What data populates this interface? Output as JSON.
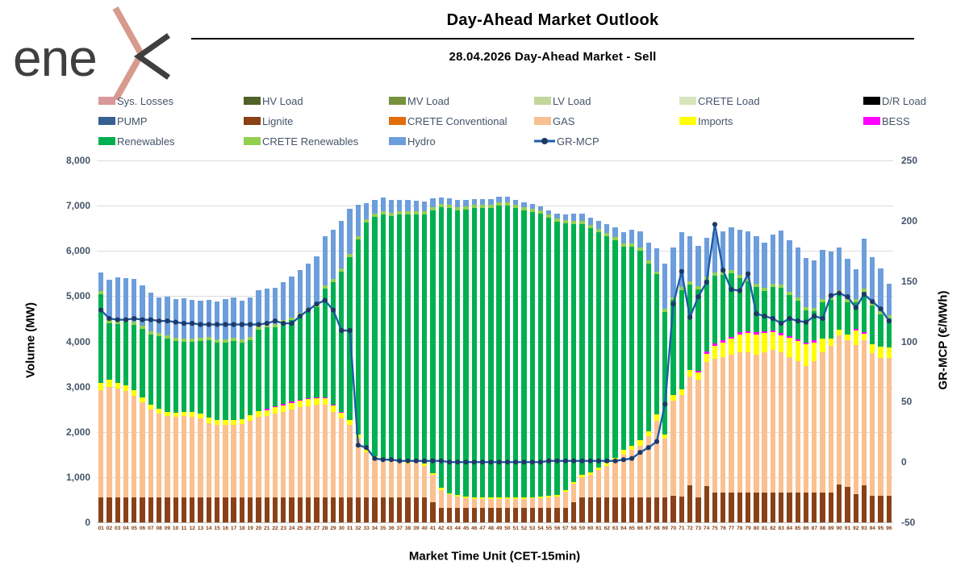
{
  "logo": {
    "text": "ene",
    "brand": "enex",
    "chevron_color": "#D69B8D",
    "text_color": "#3F3F3F"
  },
  "header": {
    "title": "Day-Ahead Market Outlook",
    "subtitle": "28.04.2026  Day-Ahead Market - Sell"
  },
  "axes": {
    "y_left": {
      "title": "Volume (MW)",
      "ticks_bottom_up": [
        "0",
        "1,000",
        "2,000",
        "3,000",
        "4,000",
        "5,000",
        "6,000",
        "7,000",
        "8,000"
      ],
      "min": 0,
      "max": 8000
    },
    "y_right": {
      "title": "GR-MCP (€/MWh)",
      "ticks_bottom_up": [
        "-50",
        "0",
        "50",
        "100",
        "150",
        "200",
        "250"
      ],
      "min": -50,
      "max": 250
    },
    "x": {
      "title": "Market Time Unit (CET-15min)",
      "labels": [
        "01",
        "02",
        "03",
        "04",
        "05",
        "06",
        "07",
        "08",
        "09",
        "10",
        "11",
        "12",
        "13",
        "14",
        "15",
        "16",
        "17",
        "18",
        "19",
        "20",
        "21",
        "22",
        "23",
        "24",
        "25",
        "26",
        "27",
        "28",
        "29",
        "30",
        "31",
        "32",
        "33",
        "34",
        "35",
        "36",
        "37",
        "38",
        "39",
        "40",
        "41",
        "42",
        "43",
        "44",
        "45",
        "46",
        "47",
        "48",
        "49",
        "50",
        "51",
        "52",
        "53",
        "54",
        "55",
        "56",
        "57",
        "58",
        "59",
        "60",
        "61",
        "62",
        "63",
        "64",
        "65",
        "66",
        "67",
        "68",
        "69",
        "70",
        "71",
        "72",
        "73",
        "74",
        "75",
        "76",
        "77",
        "78",
        "79",
        "80",
        "81",
        "82",
        "83",
        "84",
        "85",
        "86",
        "87",
        "88",
        "89",
        "90",
        "91",
        "92",
        "93",
        "94",
        "95",
        "96"
      ]
    }
  },
  "legend": {
    "items": [
      {
        "key": "sys_losses",
        "label": "Sys. Losses",
        "color": "#D9989B",
        "type": "swatch"
      },
      {
        "key": "hv_load",
        "label": "HV Load",
        "color": "#4F6228",
        "type": "swatch"
      },
      {
        "key": "mv_load",
        "label": "MV Load",
        "color": "#76923C",
        "type": "swatch"
      },
      {
        "key": "lv_load",
        "label": "LV Load",
        "color": "#C3D69B",
        "type": "swatch"
      },
      {
        "key": "crete_load",
        "label": "CRETE Load",
        "color": "#D7E4BC",
        "type": "swatch"
      },
      {
        "key": "dr_load",
        "label": "D/R Load",
        "color": "#000000",
        "type": "swatch"
      },
      {
        "key": "pump",
        "label": "PUMP",
        "color": "#376092",
        "type": "swatch"
      },
      {
        "key": "lignite",
        "label": "Lignite",
        "color": "#8A4117",
        "type": "swatch"
      },
      {
        "key": "crete_conventional",
        "label": "CRETE Conventional",
        "color": "#E36C0A",
        "type": "swatch"
      },
      {
        "key": "gas",
        "label": "GAS",
        "color": "#FAC090",
        "type": "swatch"
      },
      {
        "key": "imports",
        "label": "Imports",
        "color": "#FFFF00",
        "type": "swatch"
      },
      {
        "key": "bess",
        "label": "BESS",
        "color": "#FF00FF",
        "type": "swatch"
      },
      {
        "key": "renewables",
        "label": "Renewables",
        "color": "#00B050",
        "type": "swatch"
      },
      {
        "key": "crete_renewables",
        "label": "CRETE Renewables",
        "color": "#92D050",
        "type": "swatch"
      },
      {
        "key": "hydro",
        "label": "Hydro",
        "color": "#6D9EDC",
        "type": "swatch"
      },
      {
        "key": "gr_mcp",
        "label": "GR-MCP",
        "color": "#1E5CA8",
        "type": "line",
        "marker_color": "#1F3864"
      }
    ]
  },
  "chart_data": {
    "type": "stacked-bar+line",
    "description": "96 quarter-hour market time units; stacked sell volumes (MW, left axis) with GR-MCP price line (EUR/MWh, right axis)",
    "ylim_left": [
      0,
      8000
    ],
    "ylim_right": [
      -50,
      250
    ],
    "grid": "horizontal, every 1000 MW",
    "stack_order": [
      "lignite",
      "gas",
      "imports",
      "bess",
      "renewables",
      "crete_renewables",
      "hydro"
    ],
    "zero_series": [
      "sys_losses",
      "hv_load",
      "mv_load",
      "lv_load",
      "crete_load",
      "dr_load",
      "pump",
      "crete_conventional"
    ],
    "series": {
      "lignite": [
        550,
        550,
        550,
        550,
        550,
        550,
        550,
        550,
        550,
        550,
        550,
        550,
        550,
        550,
        550,
        550,
        550,
        550,
        550,
        550,
        550,
        550,
        550,
        550,
        550,
        550,
        550,
        550,
        550,
        550,
        550,
        550,
        550,
        550,
        550,
        550,
        550,
        550,
        550,
        550,
        450,
        320,
        320,
        320,
        320,
        320,
        320,
        320,
        320,
        320,
        320,
        320,
        320,
        320,
        320,
        320,
        320,
        450,
        550,
        550,
        550,
        550,
        550,
        550,
        550,
        550,
        550,
        550,
        550,
        590,
        570,
        820,
        550,
        800,
        660,
        660,
        660,
        660,
        660,
        660,
        660,
        660,
        660,
        660,
        660,
        660,
        660,
        660,
        660,
        835,
        780,
        620,
        820,
        590,
        590,
        590
      ],
      "gas": [
        2380,
        2450,
        2400,
        2350,
        2250,
        2100,
        1950,
        1850,
        1800,
        1780,
        1800,
        1780,
        1750,
        1650,
        1600,
        1600,
        1600,
        1620,
        1700,
        1780,
        1800,
        1850,
        1900,
        1950,
        2000,
        2020,
        2050,
        2050,
        1900,
        1750,
        1600,
        1300,
        1000,
        850,
        800,
        780,
        760,
        750,
        760,
        700,
        600,
        400,
        300,
        250,
        220,
        200,
        200,
        200,
        200,
        200,
        200,
        200,
        210,
        220,
        230,
        250,
        350,
        400,
        450,
        500,
        600,
        700,
        800,
        950,
        1050,
        1150,
        1350,
        1700,
        1300,
        2100,
        2250,
        2400,
        2600,
        2750,
        2950,
        3000,
        3050,
        3100,
        3100,
        3050,
        3100,
        3150,
        3100,
        3000,
        2900,
        2800,
        2900,
        3100,
        3250,
        3300,
        3250,
        3300,
        3200,
        3150,
        3050,
        3050
      ],
      "imports": [
        150,
        150,
        140,
        130,
        120,
        120,
        110,
        110,
        100,
        100,
        100,
        110,
        110,
        120,
        120,
        110,
        110,
        110,
        120,
        130,
        130,
        140,
        140,
        140,
        140,
        150,
        140,
        140,
        130,
        120,
        110,
        100,
        80,
        60,
        60,
        50,
        50,
        50,
        50,
        50,
        40,
        40,
        30,
        30,
        30,
        30,
        30,
        30,
        30,
        30,
        30,
        30,
        30,
        30,
        30,
        30,
        40,
        50,
        50,
        60,
        60,
        70,
        80,
        100,
        100,
        110,
        120,
        130,
        100,
        120,
        120,
        140,
        160,
        180,
        300,
        320,
        350,
        400,
        420,
        450,
        420,
        400,
        380,
        420,
        450,
        480,
        420,
        300,
        150,
        120,
        130,
        320,
        150,
        200,
        250,
        220
      ],
      "bess": [
        0,
        0,
        0,
        0,
        0,
        0,
        0,
        0,
        0,
        0,
        0,
        0,
        0,
        0,
        0,
        0,
        0,
        0,
        0,
        0,
        25,
        25,
        25,
        25,
        25,
        25,
        25,
        25,
        25,
        25,
        0,
        0,
        0,
        0,
        0,
        0,
        0,
        0,
        0,
        0,
        0,
        0,
        0,
        0,
        0,
        0,
        0,
        0,
        0,
        0,
        0,
        0,
        0,
        0,
        0,
        0,
        0,
        0,
        0,
        0,
        0,
        0,
        0,
        0,
        0,
        0,
        0,
        0,
        0,
        0,
        0,
        0,
        40,
        40,
        40,
        40,
        40,
        40,
        40,
        40,
        40,
        40,
        40,
        40,
        40,
        40,
        40,
        0,
        0,
        0,
        0,
        30,
        30,
        0,
        0,
        0
      ],
      "renewables": [
        1970,
        1250,
        1300,
        1400,
        1450,
        1500,
        1550,
        1600,
        1620,
        1580,
        1550,
        1560,
        1600,
        1700,
        1700,
        1720,
        1750,
        1700,
        1650,
        1800,
        1800,
        1750,
        1780,
        1800,
        1850,
        1900,
        2000,
        2400,
        2700,
        3100,
        3600,
        4300,
        5000,
        5300,
        5400,
        5400,
        5450,
        5450,
        5450,
        5500,
        5800,
        6200,
        6300,
        6300,
        6350,
        6400,
        6400,
        6400,
        6450,
        6450,
        6400,
        6350,
        6300,
        6250,
        6150,
        6050,
        5900,
        5700,
        5550,
        5400,
        5200,
        5000,
        4800,
        4500,
        4400,
        4200,
        3700,
        3100,
        2700,
        2100,
        2200,
        1900,
        1800,
        1600,
        1500,
        1450,
        1400,
        1200,
        1100,
        1000,
        900,
        950,
        1000,
        900,
        850,
        700,
        650,
        800,
        850,
        800,
        700,
        600,
        900,
        850,
        700,
        650
      ],
      "crete_renewables": 70,
      "hydro": [
        400,
        900,
        950,
        900,
        950,
        900,
        850,
        800,
        850,
        860,
        880,
        850,
        820,
        830,
        850,
        880,
        900,
        850,
        880,
        800,
        800,
        800,
        850,
        900,
        950,
        1000,
        1050,
        1100,
        1100,
        1050,
        1000,
        700,
        350,
        300,
        300,
        280,
        250,
        250,
        230,
        230,
        200,
        150,
        150,
        150,
        130,
        130,
        120,
        120,
        120,
        120,
        110,
        100,
        100,
        100,
        100,
        100,
        120,
        150,
        150,
        150,
        180,
        200,
        220,
        250,
        300,
        350,
        400,
        500,
        1000,
        1100,
        1200,
        1000,
        900,
        850,
        890,
        900,
        950,
        1000,
        1050,
        1050,
        1000,
        1100,
        1200,
        1150,
        1100,
        1100,
        1050,
        1100,
        1000,
        950,
        900,
        650,
        1100,
        1000,
        950,
        700
      ]
    },
    "line": {
      "name": "GR-MCP",
      "axis": "right",
      "color": "#1E5CA8",
      "marker_color": "#1F3864",
      "values": [
        126,
        119,
        118,
        118,
        119,
        118,
        118,
        117,
        117,
        116,
        115,
        115,
        114,
        114,
        114,
        114,
        114,
        114,
        114,
        114,
        115,
        117,
        115,
        115,
        121,
        126,
        131,
        134,
        126,
        109,
        109,
        14,
        12,
        3,
        2,
        2,
        1,
        1,
        1,
        1,
        1,
        1,
        0,
        0,
        0,
        0,
        0,
        0,
        0,
        0,
        0,
        0,
        0,
        0,
        1,
        1,
        1,
        1,
        1,
        1,
        1,
        1,
        1,
        2,
        3,
        8,
        12,
        17,
        48,
        131,
        158,
        120,
        137,
        149,
        197,
        159,
        143,
        142,
        156,
        123,
        121,
        119,
        115,
        119,
        117,
        116,
        121,
        119,
        138,
        140,
        137,
        128,
        139,
        133,
        127,
        117
      ]
    }
  }
}
